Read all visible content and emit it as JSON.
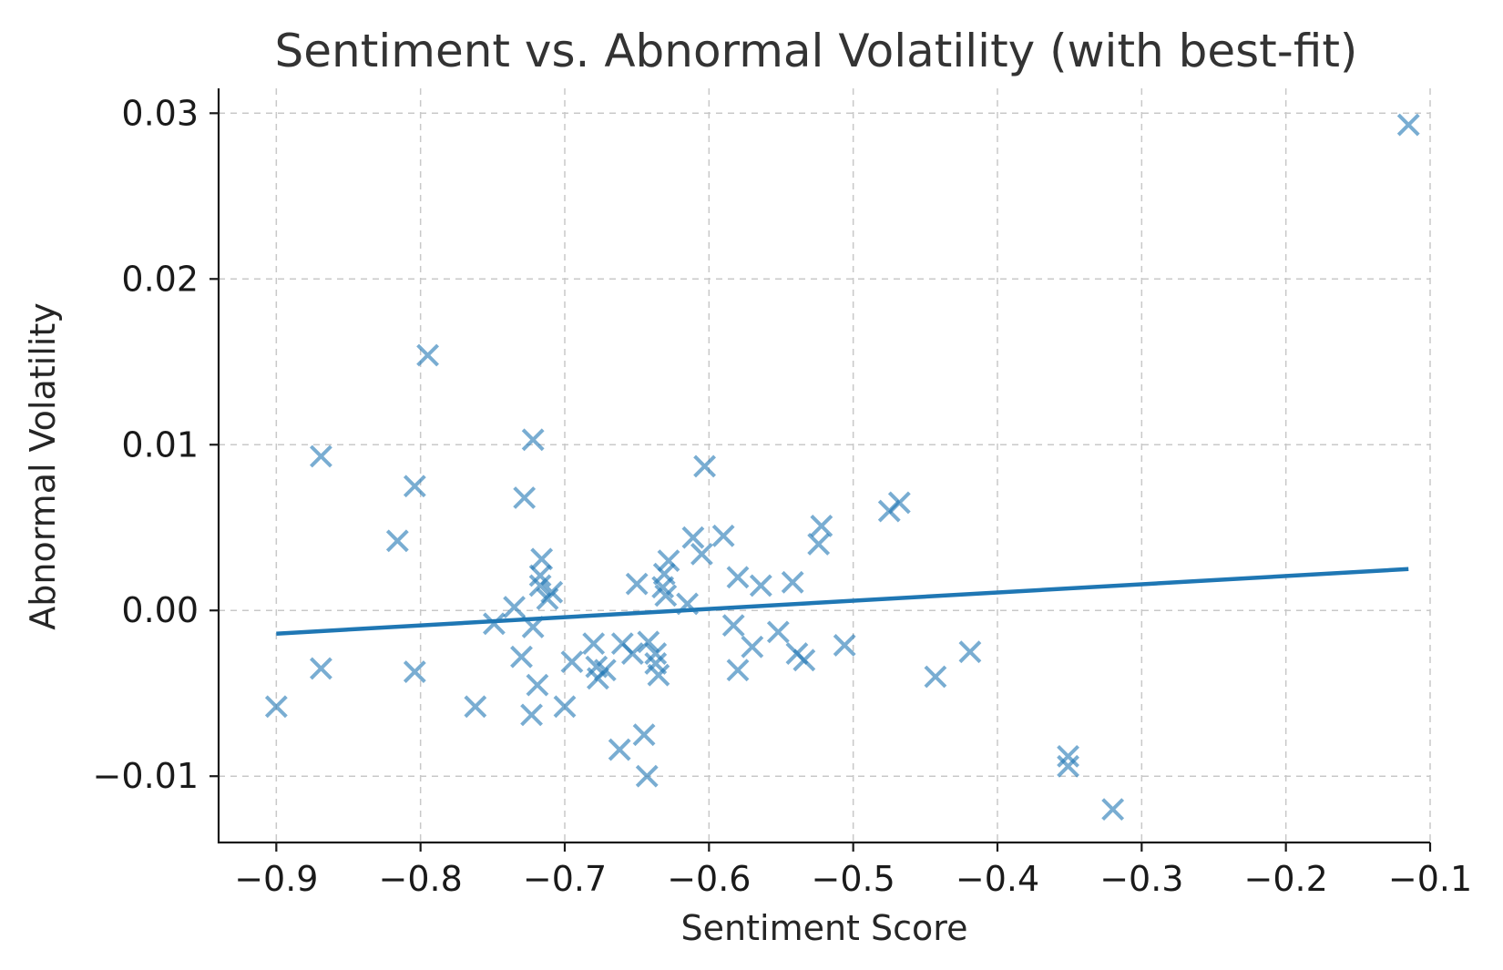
{
  "chart_data": {
    "type": "scatter",
    "title": "Sentiment vs. Abnormal Volatility (with best-fit)",
    "xlabel": "Sentiment Score",
    "ylabel": "Abnormal Volatility",
    "xlim": [
      -0.94,
      -0.1
    ],
    "ylim": [
      -0.014,
      0.0315
    ],
    "xticks": [
      -0.9,
      -0.8,
      -0.7,
      -0.6,
      -0.5,
      -0.4,
      -0.3,
      -0.2,
      -0.1
    ],
    "xtick_labels": [
      "−0.9",
      "−0.8",
      "−0.7",
      "−0.6",
      "−0.5",
      "−0.4",
      "−0.3",
      "−0.2",
      "−0.1"
    ],
    "yticks": [
      -0.01,
      0.0,
      0.01,
      0.02,
      0.03
    ],
    "ytick_labels": [
      "−0.01",
      "0.00",
      "0.01",
      "0.02",
      "0.03"
    ],
    "grid": true,
    "marker": "x",
    "marker_color": "#1f77b4",
    "marker_opacity": 0.6,
    "line_color": "#1f77b4",
    "points": [
      [
        -0.115,
        0.0293
      ],
      [
        -0.795,
        0.0154
      ],
      [
        -0.722,
        0.0103
      ],
      [
        -0.869,
        0.0093
      ],
      [
        -0.603,
        0.0087
      ],
      [
        -0.804,
        0.0075
      ],
      [
        -0.728,
        0.0068
      ],
      [
        -0.468,
        0.0065
      ],
      [
        -0.475,
        0.006
      ],
      [
        -0.522,
        0.0051
      ],
      [
        -0.59,
        0.0045
      ],
      [
        -0.611,
        0.0044
      ],
      [
        -0.816,
        0.0042
      ],
      [
        -0.524,
        0.004
      ],
      [
        -0.605,
        0.0034
      ],
      [
        -0.716,
        0.0031
      ],
      [
        -0.628,
        0.003
      ],
      [
        -0.631,
        0.0022
      ],
      [
        -0.717,
        0.0021
      ],
      [
        -0.58,
        0.002
      ],
      [
        -0.542,
        0.0017
      ],
      [
        -0.65,
        0.0016
      ],
      [
        -0.564,
        0.0015
      ],
      [
        -0.717,
        0.0015
      ],
      [
        -0.632,
        0.0014
      ],
      [
        -0.709,
        0.0011
      ],
      [
        -0.63,
        0.0009
      ],
      [
        -0.712,
        0.0007
      ],
      [
        -0.615,
        0.0004
      ],
      [
        -0.735,
        0.0002
      ],
      [
        -0.749,
        -0.0008
      ],
      [
        -0.583,
        -0.0009
      ],
      [
        -0.722,
        -0.001
      ],
      [
        -0.552,
        -0.0013
      ],
      [
        -0.68,
        -0.002
      ],
      [
        -0.66,
        -0.002
      ],
      [
        -0.642,
        -0.0019
      ],
      [
        -0.506,
        -0.0021
      ],
      [
        -0.57,
        -0.0022
      ],
      [
        -0.419,
        -0.0025
      ],
      [
        -0.539,
        -0.0026
      ],
      [
        -0.653,
        -0.0026
      ],
      [
        -0.637,
        -0.0026
      ],
      [
        -0.73,
        -0.0028
      ],
      [
        -0.534,
        -0.003
      ],
      [
        -0.695,
        -0.0031
      ],
      [
        -0.637,
        -0.0032
      ],
      [
        -0.678,
        -0.0034
      ],
      [
        -0.869,
        -0.0035
      ],
      [
        -0.58,
        -0.0036
      ],
      [
        -0.672,
        -0.0036
      ],
      [
        -0.804,
        -0.0037
      ],
      [
        -0.635,
        -0.0039
      ],
      [
        -0.443,
        -0.004
      ],
      [
        -0.677,
        -0.0041
      ],
      [
        -0.719,
        -0.0045
      ],
      [
        -0.9,
        -0.0058
      ],
      [
        -0.762,
        -0.0058
      ],
      [
        -0.7,
        -0.0058
      ],
      [
        -0.723,
        -0.0063
      ],
      [
        -0.645,
        -0.0075
      ],
      [
        -0.662,
        -0.0084
      ],
      [
        -0.351,
        -0.0088
      ],
      [
        -0.351,
        -0.0094
      ],
      [
        -0.643,
        -0.01
      ],
      [
        -0.32,
        -0.012
      ]
    ],
    "fit_line": {
      "x": [
        -0.9,
        -0.115
      ],
      "y": [
        -0.0014,
        0.0025
      ]
    }
  }
}
